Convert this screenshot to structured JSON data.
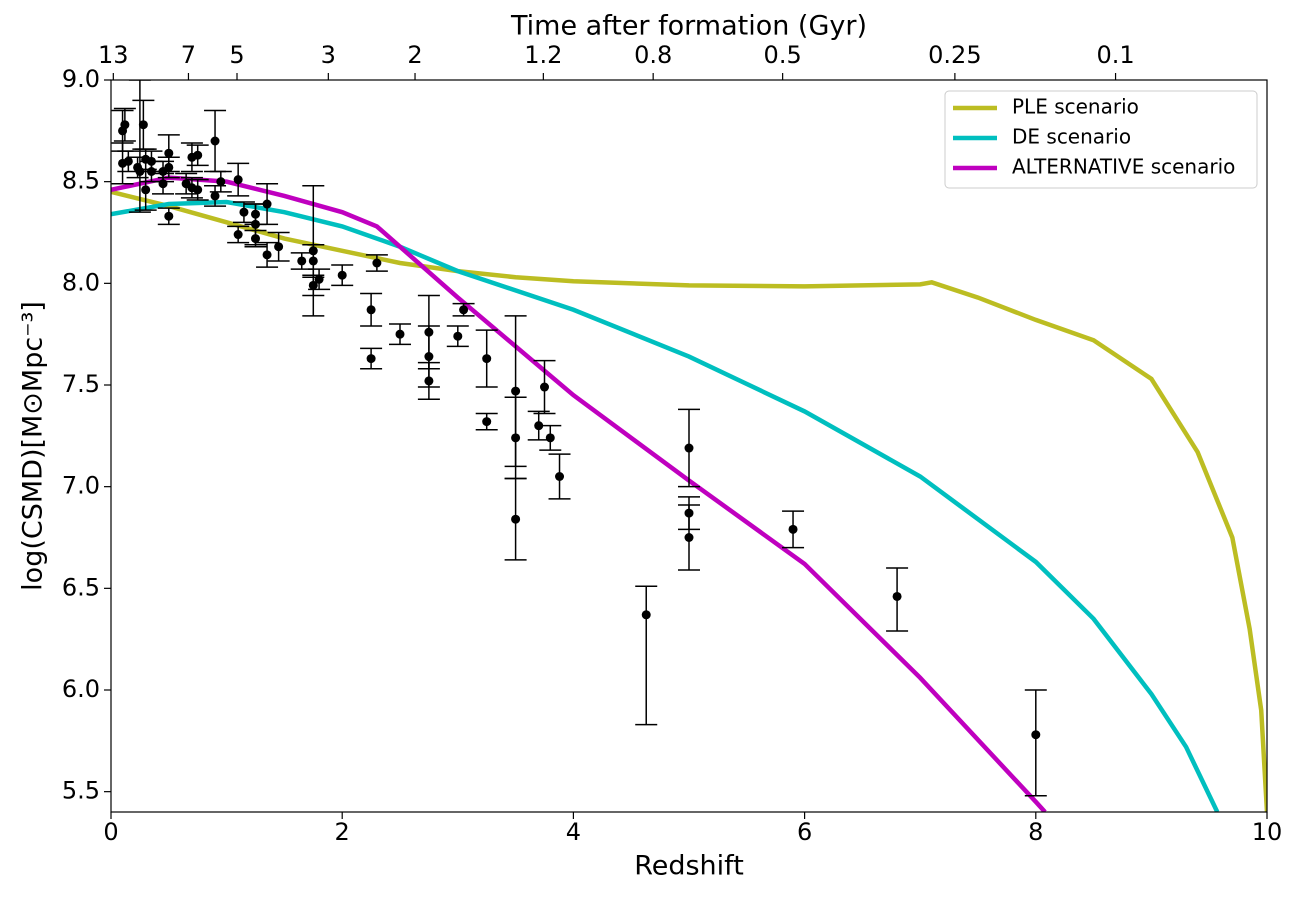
{
  "chart_data": {
    "type": "line",
    "xlabel": "Redshift",
    "ylabel": "log(CSMD)[M⊙Mpc⁻³]",
    "x2label": "Time after formation (Gyr)",
    "xlim": [
      0,
      10
    ],
    "ylim": [
      5.4,
      9.0
    ],
    "xticks": [
      0,
      2,
      4,
      6,
      8,
      10
    ],
    "yticks": [
      {
        "value": 5.5,
        "label": "5.5"
      },
      {
        "value": 6.0,
        "label": "6.0"
      },
      {
        "value": 6.5,
        "label": "6.5"
      },
      {
        "value": 7.0,
        "label": "7.0"
      },
      {
        "value": 7.5,
        "label": "7.5"
      },
      {
        "value": 8.0,
        "label": "8.0"
      },
      {
        "value": 8.5,
        "label": "8.5"
      },
      {
        "value": 9.0,
        "label": "9.0"
      }
    ],
    "x2ticks": [
      {
        "value": 0.02,
        "label": "13"
      },
      {
        "value": 0.67,
        "label": "7"
      },
      {
        "value": 1.09,
        "label": "5"
      },
      {
        "value": 1.88,
        "label": "3"
      },
      {
        "value": 2.63,
        "label": "2"
      },
      {
        "value": 3.74,
        "label": "1.2"
      },
      {
        "value": 4.69,
        "label": "0.8"
      },
      {
        "value": 5.81,
        "label": "0.5"
      },
      {
        "value": 7.3,
        "label": "0.25"
      },
      {
        "value": 8.69,
        "label": "0.1"
      }
    ],
    "legend": "upper right",
    "grid": false,
    "series": [
      {
        "name": "PLE scenario",
        "color": "#bcbd22",
        "x": [
          0,
          0.5,
          1,
          1.5,
          2,
          2.5,
          3,
          3.5,
          4,
          5,
          6,
          7,
          7.1,
          7.5,
          8,
          8.5,
          9,
          9.4,
          9.7,
          9.85,
          9.95,
          10
        ],
        "values": [
          8.45,
          8.38,
          8.3,
          8.22,
          8.16,
          8.1,
          8.06,
          8.03,
          8.01,
          7.99,
          7.985,
          7.995,
          8.005,
          7.93,
          7.82,
          7.72,
          7.53,
          7.17,
          6.75,
          6.3,
          5.9,
          5.4
        ]
      },
      {
        "name": "DE scenario",
        "color": "#00bfbf",
        "x": [
          0,
          0.5,
          1,
          1.5,
          2,
          2.5,
          3,
          4,
          5,
          6,
          7,
          8,
          8.5,
          9,
          9.3,
          9.57
        ],
        "values": [
          8.34,
          8.39,
          8.4,
          8.35,
          8.28,
          8.18,
          8.06,
          7.87,
          7.64,
          7.37,
          7.05,
          6.63,
          6.35,
          5.98,
          5.72,
          5.4
        ]
      },
      {
        "name": "ALTERNATIVE scenario",
        "color": "#bf00bf",
        "x": [
          0,
          0.5,
          1,
          1.5,
          2,
          2.3,
          3,
          4,
          5,
          6,
          7,
          8,
          8.08
        ],
        "values": [
          8.46,
          8.52,
          8.5,
          8.43,
          8.35,
          8.28,
          7.93,
          7.45,
          7.03,
          6.62,
          6.06,
          5.45,
          5.4
        ]
      }
    ],
    "points": {
      "color": "#000000",
      "x": [
        0.1,
        0.1,
        0.12,
        0.15,
        0.23,
        0.25,
        0.28,
        0.3,
        0.3,
        0.35,
        0.35,
        0.45,
        0.45,
        0.5,
        0.5,
        0.5,
        0.65,
        0.7,
        0.7,
        0.75,
        0.75,
        0.9,
        0.9,
        0.95,
        1.1,
        1.1,
        1.15,
        1.25,
        1.25,
        1.25,
        1.35,
        1.35,
        1.45,
        1.65,
        1.75,
        1.75,
        1.75,
        1.8,
        2.0,
        2.25,
        2.25,
        2.3,
        2.5,
        2.75,
        2.75,
        2.75,
        3.0,
        3.05,
        3.25,
        3.25,
        3.5,
        3.5,
        3.5,
        3.7,
        3.75,
        3.8,
        3.88,
        4.63,
        5.0,
        5.0,
        5.0,
        5.9,
        6.8,
        8.0
      ],
      "values": [
        8.59,
        8.75,
        8.78,
        8.6,
        8.57,
        8.55,
        8.78,
        8.46,
        8.61,
        8.6,
        8.55,
        8.49,
        8.55,
        8.64,
        8.33,
        8.57,
        8.49,
        8.62,
        8.47,
        8.63,
        8.46,
        8.43,
        8.7,
        8.5,
        8.51,
        8.24,
        8.35,
        8.34,
        8.22,
        8.29,
        8.14,
        8.39,
        8.18,
        8.11,
        8.16,
        8.11,
        7.99,
        8.02,
        8.04,
        7.87,
        7.63,
        8.1,
        7.75,
        7.76,
        7.64,
        7.52,
        7.74,
        7.87,
        7.63,
        7.32,
        7.47,
        7.24,
        6.84,
        7.3,
        7.49,
        7.24,
        7.05,
        6.37,
        7.19,
        6.87,
        6.75,
        6.79,
        6.46,
        5.78
      ],
      "err_low": [
        0.1,
        0.1,
        0.08,
        0.05,
        0.05,
        0.2,
        0.12,
        0.1,
        0.05,
        0.05,
        0.05,
        0.05,
        0.05,
        0.09,
        0.04,
        0.05,
        0.05,
        0.07,
        0.05,
        0.05,
        0.05,
        0.05,
        0.15,
        0.05,
        0.08,
        0.04,
        0.05,
        0.05,
        0.04,
        0.1,
        0.06,
        0.1,
        0.07,
        0.04,
        0.32,
        0.08,
        0.05,
        0.05,
        0.05,
        0.08,
        0.05,
        0.04,
        0.05,
        0.18,
        0.15,
        0.09,
        0.05,
        0.03,
        0.14,
        0.04,
        0.37,
        0.2,
        0.2,
        0.07,
        0.13,
        0.06,
        0.11,
        0.54,
        0.19,
        0.08,
        0.16,
        0.09,
        0.17,
        0.3
      ],
      "err_high": [
        0.1,
        0.1,
        0.08,
        0.05,
        0.05,
        0.45,
        0.12,
        0.1,
        0.05,
        0.05,
        0.05,
        0.05,
        0.05,
        0.09,
        0.04,
        0.05,
        0.05,
        0.07,
        0.05,
        0.05,
        0.05,
        0.05,
        0.15,
        0.05,
        0.08,
        0.04,
        0.05,
        0.05,
        0.04,
        0.1,
        0.06,
        0.1,
        0.07,
        0.04,
        0.32,
        0.08,
        0.05,
        0.05,
        0.05,
        0.08,
        0.05,
        0.04,
        0.05,
        0.18,
        0.15,
        0.09,
        0.05,
        0.03,
        0.14,
        0.04,
        0.37,
        0.2,
        0.2,
        0.07,
        0.13,
        0.06,
        0.11,
        0.14,
        0.19,
        0.08,
        0.16,
        0.09,
        0.14,
        0.22
      ]
    }
  }
}
